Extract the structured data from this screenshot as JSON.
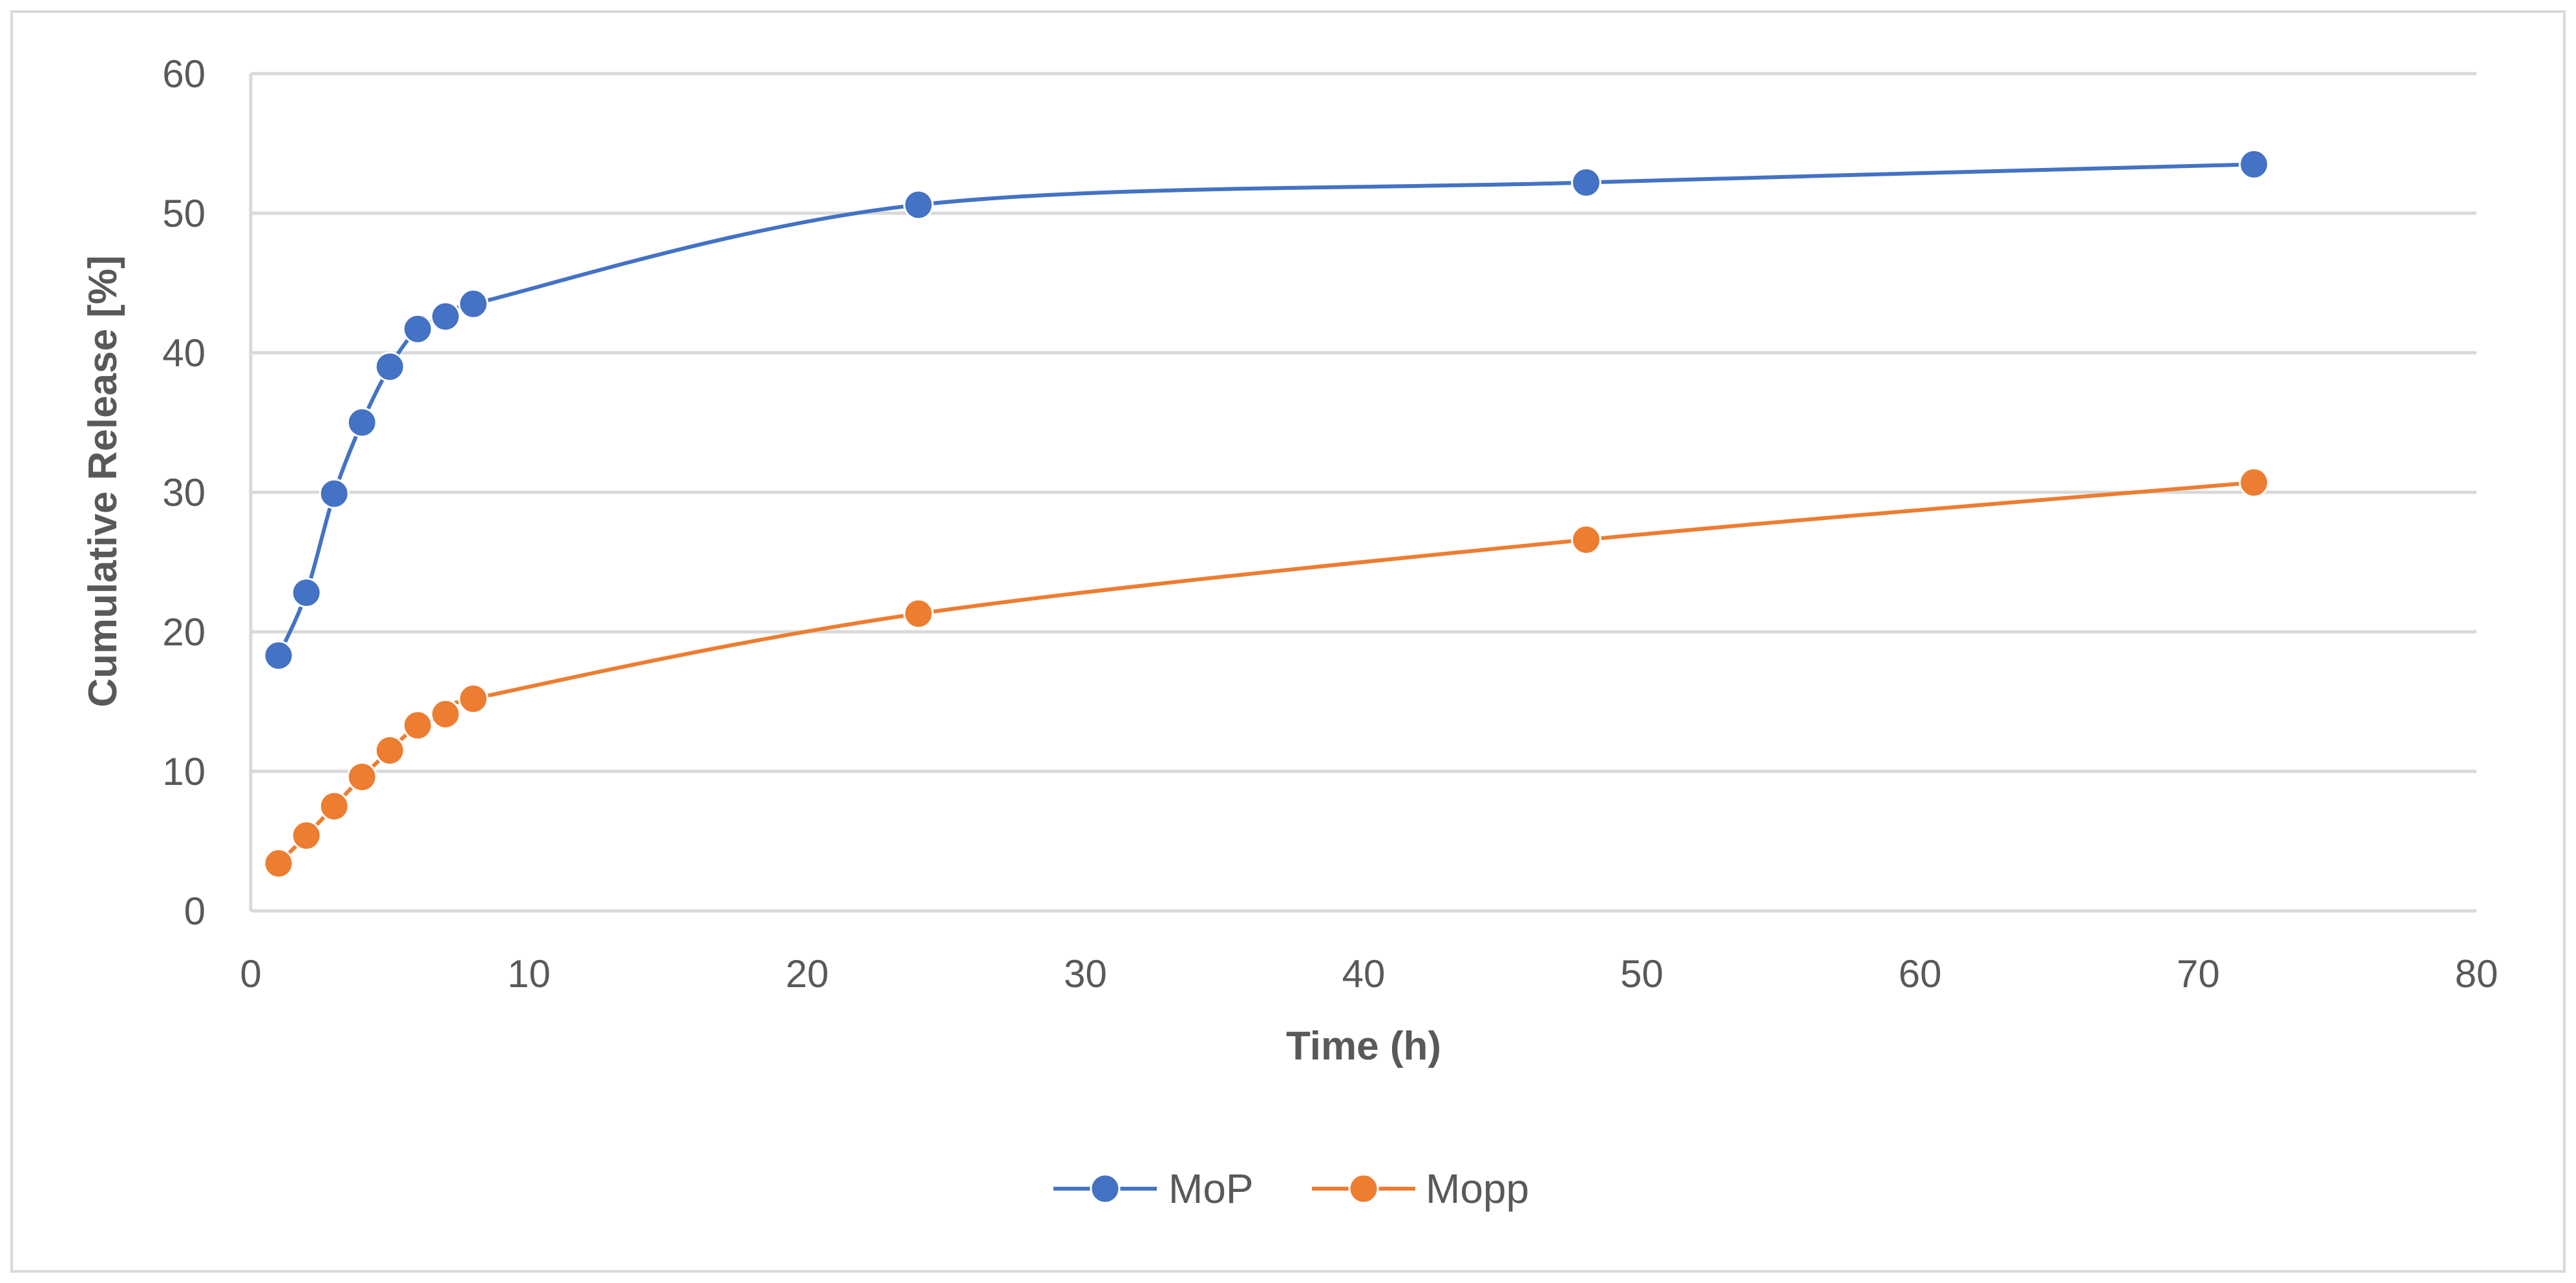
{
  "chart_data": {
    "type": "line",
    "title": "",
    "xlabel": "Time (h)",
    "ylabel": "Cumulative Release [%]",
    "xlim": [
      0,
      80
    ],
    "ylim": [
      0,
      60
    ],
    "x_ticks": [
      "0",
      "10",
      "20",
      "30",
      "40",
      "50",
      "60",
      "70",
      "80"
    ],
    "y_ticks": [
      "0",
      "10",
      "20",
      "30",
      "40",
      "50",
      "60"
    ],
    "grid": true,
    "legend_position": "bottom",
    "series": [
      {
        "name": "MoP",
        "color": "#4472c4",
        "x": [
          1,
          2,
          3,
          4,
          5,
          6,
          7,
          8,
          24,
          48,
          72
        ],
        "y": [
          18.3,
          22.8,
          29.9,
          35.0,
          39.0,
          41.7,
          42.6,
          43.5,
          50.6,
          52.2,
          53.5
        ]
      },
      {
        "name": "Mopp",
        "color": "#ed7d31",
        "x": [
          1,
          2,
          3,
          4,
          5,
          6,
          7,
          8,
          24,
          48,
          72
        ],
        "y": [
          3.4,
          5.4,
          7.5,
          9.6,
          11.5,
          13.3,
          14.1,
          15.2,
          21.3,
          26.6,
          30.7
        ]
      }
    ]
  }
}
